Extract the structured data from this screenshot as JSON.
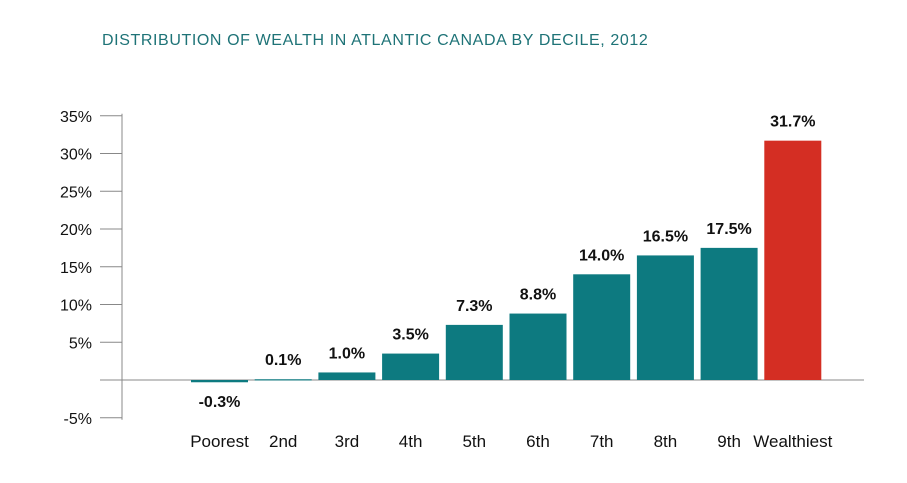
{
  "chart_data": {
    "type": "bar",
    "title": "DISTRIBUTION OF WEALTH IN ATLANTIC CANADA BY DECILE, 2012",
    "categories": [
      "Poorest",
      "2nd",
      "3rd",
      "4th",
      "5th",
      "6th",
      "7th",
      "8th",
      "9th",
      "Wealthiest"
    ],
    "values": [
      -0.3,
      0.1,
      1.0,
      3.5,
      7.3,
      8.8,
      14.0,
      16.5,
      17.5,
      31.7
    ],
    "value_labels": [
      "-0.3%",
      "0.1%",
      "1.0%",
      "3.5%",
      "7.3%",
      "8.8%",
      "14.0%",
      "16.5%",
      "17.5%",
      "31.7%"
    ],
    "y_ticks": [
      -5,
      5,
      10,
      15,
      20,
      25,
      30,
      35
    ],
    "y_tick_labels": [
      "-5%",
      "5%",
      "10%",
      "15%",
      "20%",
      "25%",
      "30%",
      "35%"
    ],
    "ylim": [
      -5,
      35
    ],
    "grid": false,
    "colors": {
      "default": "#0d7a80",
      "highlight": "#d42e23",
      "title": "#1e7377"
    },
    "highlight_category": "Wealthiest"
  }
}
